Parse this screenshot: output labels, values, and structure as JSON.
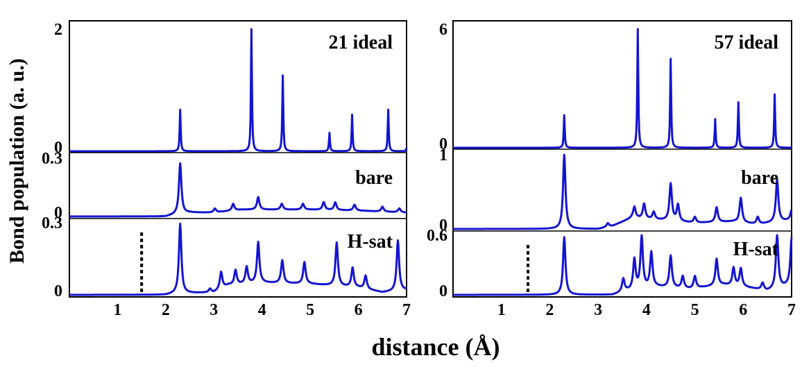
{
  "figure": {
    "xlabel": "distance (Å)",
    "ylabel": "Bond population (a. u.)"
  },
  "colors": {
    "curve": "#1414d2",
    "axes": "#000000",
    "background": "#ffffff"
  },
  "chart_data": [
    {
      "type": "line",
      "xlim": [
        0,
        7
      ],
      "xticks": [
        "1",
        "2",
        "3",
        "4",
        "5",
        "6",
        "7"
      ],
      "marker_x": 1.5,
      "subplots": [
        {
          "label": "21 ideal",
          "ymax": 2,
          "yticks": [
            "2",
            "0"
          ],
          "peaks": [
            [
              2.3,
              0.68
            ],
            [
              3.78,
              2.0
            ],
            [
              4.43,
              1.24
            ],
            [
              5.4,
              0.3
            ],
            [
              5.87,
              0.6
            ],
            [
              6.62,
              0.68
            ],
            [
              7.0,
              0.05
            ]
          ],
          "baseline": []
        },
        {
          "label": "bare",
          "ymax": 0.3,
          "yticks": [
            "0.3",
            "0"
          ],
          "peaks": [
            [
              2.3,
              0.26
            ],
            [
              3.92,
              0.065
            ],
            [
              3.02,
              0.02
            ],
            [
              3.4,
              0.035
            ],
            [
              4.41,
              0.03
            ],
            [
              4.85,
              0.03
            ],
            [
              5.28,
              0.04
            ],
            [
              5.52,
              0.04
            ],
            [
              5.92,
              0.03
            ],
            [
              6.5,
              0.025
            ],
            [
              6.85,
              0.02
            ]
          ],
          "baseline": [
            [
              2.0,
              0
            ],
            [
              2.2,
              0.01
            ],
            [
              2.5,
              0.02
            ],
            [
              3.0,
              0.02
            ],
            [
              3.6,
              0.035
            ],
            [
              4.3,
              0.035
            ],
            [
              5.0,
              0.035
            ],
            [
              6.0,
              0.03
            ],
            [
              7.0,
              0.02
            ]
          ]
        },
        {
          "label": "H-sat",
          "ymax": 0.3,
          "yticks": [
            "0.3",
            "0"
          ],
          "peaks": [
            [
              2.3,
              0.29
            ],
            [
              2.92,
              0.015
            ],
            [
              3.15,
              0.07
            ],
            [
              3.45,
              0.06
            ],
            [
              3.68,
              0.07
            ],
            [
              3.92,
              0.17
            ],
            [
              4.42,
              0.095
            ],
            [
              4.88,
              0.09
            ],
            [
              5.55,
              0.18
            ],
            [
              5.88,
              0.08
            ],
            [
              6.15,
              0.055
            ],
            [
              6.82,
              0.21
            ]
          ],
          "baseline": [
            [
              2.0,
              0
            ],
            [
              2.2,
              0.005
            ],
            [
              3.0,
              0.01
            ],
            [
              3.3,
              0.04
            ],
            [
              4.0,
              0.05
            ],
            [
              5.0,
              0.045
            ],
            [
              6.0,
              0.03
            ],
            [
              6.5,
              0.01
            ],
            [
              7.0,
              0.02
            ]
          ]
        }
      ]
    },
    {
      "type": "line",
      "xlim": [
        0,
        7
      ],
      "xticks": [
        "1",
        "2",
        "3",
        "4",
        "5",
        "6",
        "7"
      ],
      "marker_x": 1.55,
      "subplots": [
        {
          "label": "57 ideal",
          "ymax": 6,
          "yticks": [
            "6",
            "0"
          ],
          "peaks": [
            [
              2.3,
              1.65
            ],
            [
              3.82,
              6.0
            ],
            [
              4.5,
              4.5
            ],
            [
              5.42,
              1.45
            ],
            [
              5.9,
              2.3
            ],
            [
              6.65,
              2.7
            ]
          ],
          "baseline": []
        },
        {
          "label": "bare",
          "ymax": 1,
          "yticks": [
            "1",
            "0"
          ],
          "peaks": [
            [
              2.3,
              1.0
            ],
            [
              3.2,
              0.05
            ],
            [
              3.75,
              0.15
            ],
            [
              3.95,
              0.2
            ],
            [
              4.15,
              0.1
            ],
            [
              4.5,
              0.5
            ],
            [
              4.65,
              0.22
            ],
            [
              5.0,
              0.08
            ],
            [
              5.45,
              0.2
            ],
            [
              5.95,
              0.33
            ],
            [
              6.3,
              0.1
            ],
            [
              6.7,
              0.57
            ],
            [
              7.0,
              0.13
            ]
          ],
          "baseline": [
            [
              3.0,
              0
            ],
            [
              3.3,
              0.04
            ],
            [
              3.7,
              0.15
            ],
            [
              4.3,
              0.12
            ],
            [
              5.0,
              0.08
            ],
            [
              5.8,
              0.1
            ],
            [
              6.3,
              0.06
            ],
            [
              7.0,
              0.12
            ]
          ]
        },
        {
          "label": "H-sat",
          "ymax": 0.6,
          "yticks": [
            "0.6",
            "0"
          ],
          "peaks": [
            [
              2.3,
              0.58
            ],
            [
              3.52,
              0.13
            ],
            [
              3.75,
              0.3
            ],
            [
              3.9,
              0.52
            ],
            [
              4.1,
              0.35
            ],
            [
              4.5,
              0.32
            ],
            [
              4.75,
              0.12
            ],
            [
              5.0,
              0.12
            ],
            [
              5.45,
              0.27
            ],
            [
              5.8,
              0.18
            ],
            [
              5.95,
              0.18
            ],
            [
              6.4,
              0.07
            ],
            [
              6.7,
              0.54
            ],
            [
              7.0,
              0.47
            ]
          ],
          "baseline": [
            [
              3.3,
              0
            ],
            [
              3.6,
              0.04
            ],
            [
              4.2,
              0.08
            ],
            [
              4.9,
              0.06
            ],
            [
              5.6,
              0.1
            ],
            [
              6.0,
              0.08
            ],
            [
              6.5,
              0.04
            ],
            [
              7.0,
              0.1
            ]
          ]
        }
      ]
    }
  ]
}
